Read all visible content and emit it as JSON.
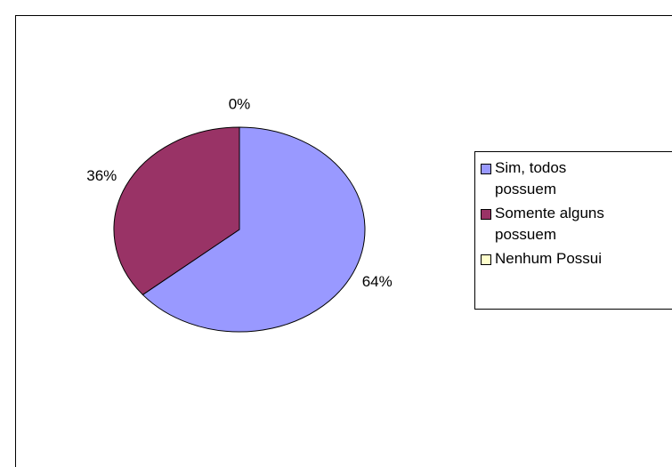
{
  "chart_data": {
    "type": "pie",
    "categories": [
      "Sim, todos possuem",
      "Somente alguns possuem",
      "Nenhum Possui"
    ],
    "values": [
      64,
      36,
      0
    ],
    "value_labels": [
      "64%",
      "36%",
      "0%"
    ],
    "colors": [
      "#9999ff",
      "#993366",
      "#ffffcc"
    ],
    "legend": "right"
  }
}
